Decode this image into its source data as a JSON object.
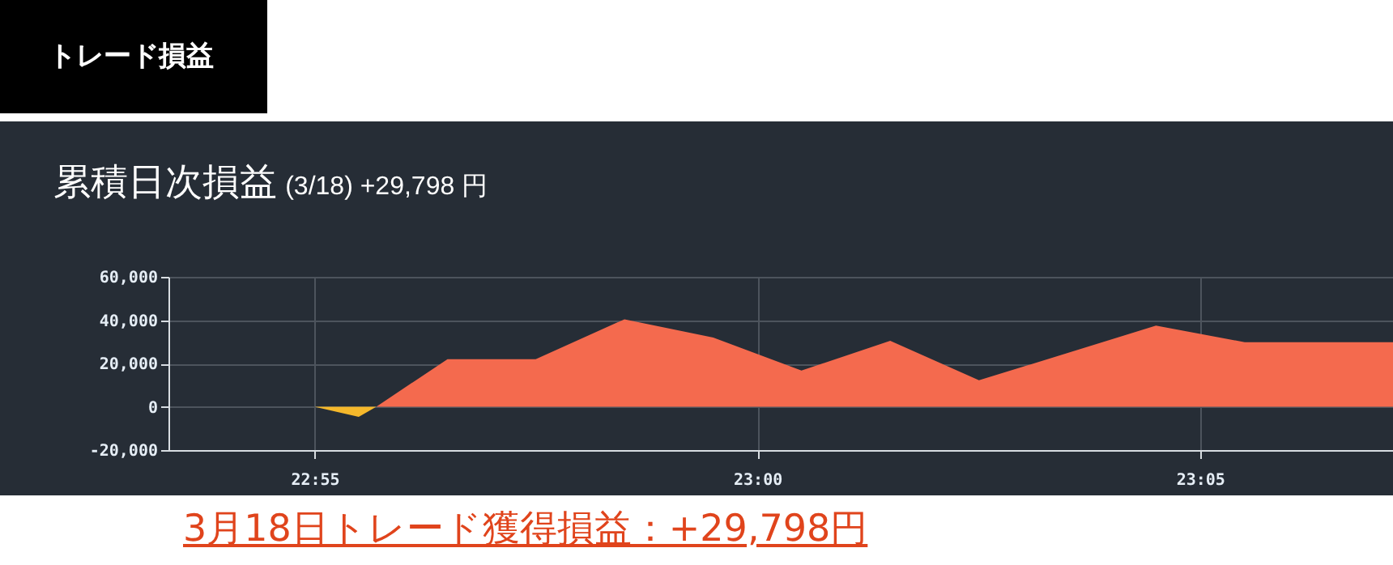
{
  "chart_data": {
    "type": "area",
    "title": "累積日次損益",
    "subtitle": "(3/18) +29,798 円",
    "annotations": [
      "トレード損益",
      "3月18日トレード獲得損益：+29,798円"
    ],
    "xlim": [
      22.8892,
      23.1196
    ],
    "xticks": [
      {
        "value": 22.9167,
        "label": "22:55"
      },
      {
        "value": 23.0,
        "label": "23:00"
      },
      {
        "value": 23.0833,
        "label": "23:05"
      }
    ],
    "ylim": [
      -20000,
      60000
    ],
    "yticks": [
      {
        "value": -20000,
        "label": "-20,000"
      },
      {
        "value": 0,
        "label": "0"
      },
      {
        "value": 20000,
        "label": "20,000"
      },
      {
        "value": 40000,
        "label": "40,000"
      },
      {
        "value": 60000,
        "label": "60,000"
      }
    ],
    "grid": true,
    "series": [
      {
        "color": "#f5b82b",
        "x": [
          22.8892,
          22.9167,
          22.925,
          22.9283
        ],
        "values": [
          0,
          0,
          -4700,
          0
        ]
      },
      {
        "color": "#f46a4e",
        "x": [
          22.9283,
          22.9417,
          22.9583,
          22.975,
          22.9917,
          23.0083,
          23.025,
          23.0417,
          23.075,
          23.0917,
          23.1196
        ],
        "values": [
          0,
          22000,
          22000,
          40400,
          32000,
          16700,
          30500,
          12200,
          37500,
          29800,
          29800
        ]
      }
    ]
  }
}
